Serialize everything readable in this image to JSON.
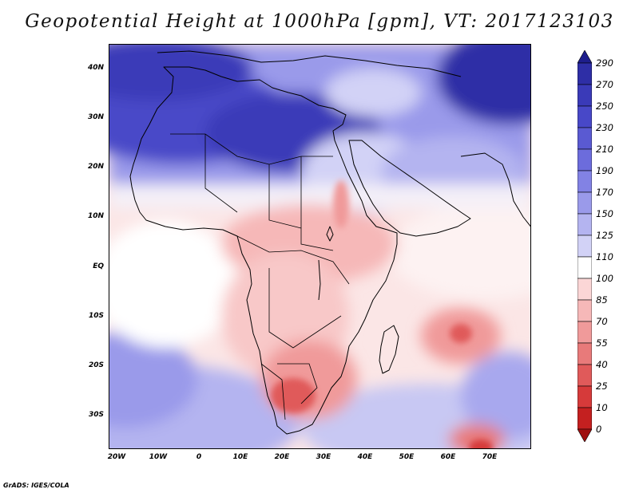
{
  "title": "Geopotential Height at 1000hPa [gpm], VT: 2017123103",
  "credit": "GrADS: IGES/COLA",
  "map": {
    "lat_labels": [
      "40N",
      "30N",
      "20N",
      "10N",
      "EQ",
      "10S",
      "20S",
      "30S"
    ],
    "lon_labels": [
      "20W",
      "10W",
      "0",
      "10E",
      "20E",
      "30E",
      "40E",
      "50E",
      "60E",
      "70E"
    ],
    "lat_range": [
      -37,
      45
    ],
    "lon_range": [
      -22,
      80
    ],
    "field": "geopotential height",
    "level": "1000hPa",
    "units": "gpm",
    "valid_time": "2017123103"
  },
  "colorbar": {
    "levels": [
      "290",
      "270",
      "250",
      "230",
      "210",
      "190",
      "170",
      "150",
      "125",
      "110",
      "100",
      "85",
      "70",
      "55",
      "40",
      "25",
      "10",
      "0"
    ],
    "colors": [
      "#1e1e8c",
      "#2e2ea6",
      "#3a3ab8",
      "#4848c8",
      "#5a5ad2",
      "#6c6cdc",
      "#8282e4",
      "#9a9aea",
      "#b4b4f0",
      "#d2d2f6",
      "#ffffff",
      "#fbd6d6",
      "#f6b8b8",
      "#f09a9a",
      "#e87a7a",
      "#e05a5a",
      "#d63a3a",
      "#c42020",
      "#a01010"
    ]
  }
}
